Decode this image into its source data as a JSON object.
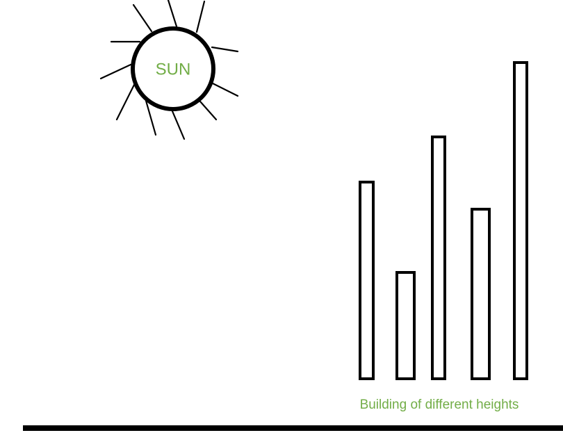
{
  "diagram": {
    "sun_label": "SUN",
    "caption": "Building of different heights",
    "buildings": [
      {
        "height": 283
      },
      {
        "height": 153
      },
      {
        "height": 348
      },
      {
        "height": 244
      },
      {
        "height": 455
      }
    ]
  },
  "colors": {
    "stroke": "#000000",
    "label": "#72ad47",
    "background": "#ffffff"
  },
  "icons": {
    "sun": "sun-icon"
  }
}
